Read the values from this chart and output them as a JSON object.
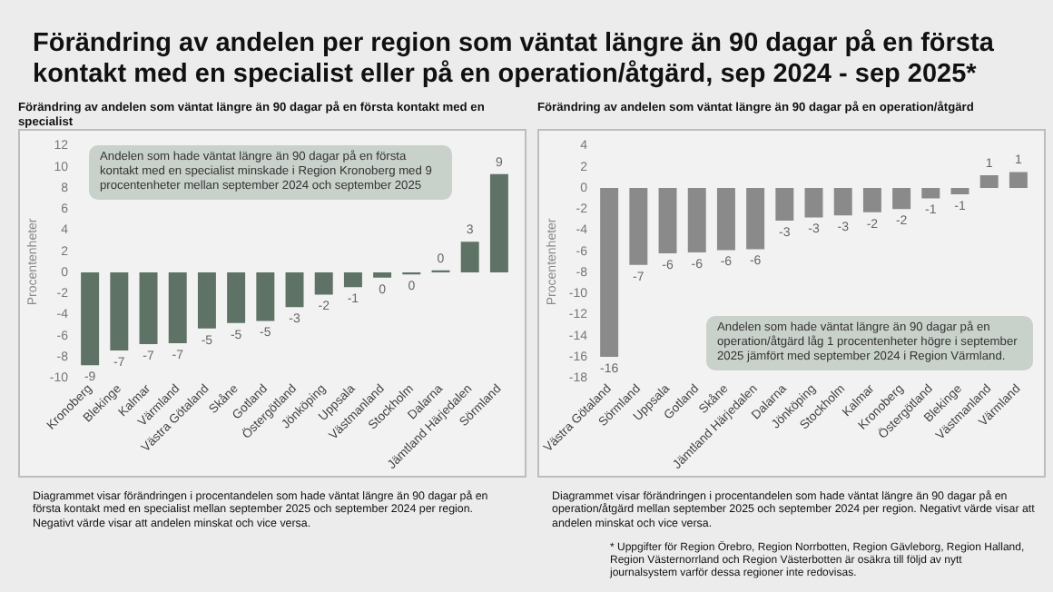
{
  "chart_data": [
    {
      "type": "bar",
      "title": "Förändring av andelen per region som väntat längre än 90 dagar på en första kontakt med en specialist eller på en operation/åtgärd, sep 2024 - sep 2025*",
      "subtitle": "Förändring av andelen som väntat längre än 90 dagar på en första kontakt med en specialist",
      "ylabel": "Procentenheter",
      "categories": [
        "Kronoberg",
        "Blekinge",
        "Kalmar",
        "Värmland",
        "Västra Götaland",
        "Skåne",
        "Gotland",
        "Östergötland",
        "Jönköping",
        "Uppsala",
        "Västmanland",
        "Stockholm",
        "Dalarna",
        "Jämtland Härjedalen",
        "Sörmland"
      ],
      "series": [
        {
          "color": "#5e7265",
          "values": [
            -8.8,
            -7.4,
            -6.8,
            -6.7,
            -5.3,
            -4.8,
            -4.6,
            -3.3,
            -2.1,
            -1.4,
            -0.5,
            -0.2,
            0.2,
            2.9,
            9.3
          ],
          "value_labels": [
            "-9",
            "-7",
            "-7",
            "-7",
            "-5",
            "-5",
            "-5",
            "-3",
            "-2",
            "-1",
            "0",
            "0",
            "0",
            "3",
            "9"
          ]
        }
      ],
      "ylim": [
        -10,
        12
      ],
      "yticks": [
        -10,
        -8,
        -6,
        -4,
        -2,
        0,
        2,
        4,
        6,
        8,
        10,
        12
      ],
      "grid": false,
      "legend": false,
      "annotations": [
        "Andelen som hade väntat längre än 90 dagar på en första kontakt med en specialist minskade i Region Kronoberg med 9 procentenheter mellan september 2024 och september 2025",
        "Diagrammet visar förändringen i procentandelen som hade väntat längre än 90 dagar på en första kontakt med en specialist mellan september 2025 och september 2024 per region. Negativt värde visar att andelen minskat och vice versa."
      ]
    },
    {
      "type": "bar",
      "subtitle": "Förändring av andelen som väntat längre än 90 dagar på en operation/åtgärd",
      "ylabel": "Procentenheter",
      "categories": [
        "Västra Götaland",
        "Sörmland",
        "Uppsala",
        "Gotland",
        "Skåne",
        "Jämtland Härjedalen",
        "Dalarna",
        "Jönköping",
        "Stockholm",
        "Kalmar",
        "Kronoberg",
        "Östergötland",
        "Blekinge",
        "Västmanland",
        "Värmland"
      ],
      "series": [
        {
          "color": "#8a8a8a",
          "values": [
            -16,
            -7.3,
            -6.2,
            -6.1,
            -5.9,
            -5.8,
            -3.1,
            -2.8,
            -2.6,
            -2.3,
            -2.0,
            -1.0,
            -0.6,
            1.2,
            1.5
          ],
          "value_labels": [
            "-16",
            "-7",
            "-6",
            "-6",
            "-6",
            "-6",
            "-3",
            "-3",
            "-3",
            "-2",
            "-2",
            "-1",
            "-1",
            "1",
            "1"
          ]
        }
      ],
      "ylim": [
        -18,
        4
      ],
      "yticks": [
        -18,
        -16,
        -14,
        -12,
        -10,
        -8,
        -6,
        -4,
        -2,
        0,
        2,
        4
      ],
      "grid": false,
      "legend": false,
      "annotations": [
        "Andelen som hade väntat längre än 90 dagar på en operation/åtgärd låg 1 procentenheter högre i september 2025 jämfört med september 2024 i Region Värmland.",
        "Diagrammet visar förändringen i procentandelen som hade väntat längre än 90 dagar på en operation/åtgärd mellan september 2025 och september 2024 per region. Negativt värde visar att andelen minskat och vice versa.",
        "* Uppgifter för Region Örebro, Region Norrbotten, Region Gävleborg, Region Halland, Region Västernorrland och Region Västerbotten är osäkra till följd av nytt journalsystem varför dessa regioner inte redovisas."
      ]
    }
  ]
}
